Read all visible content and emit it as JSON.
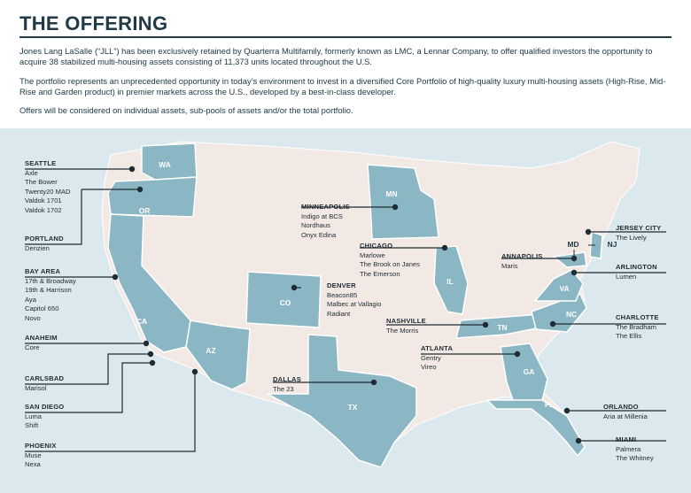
{
  "header": {
    "title": "THE OFFERING",
    "paragraphs": [
      "Jones Lang LaSalle (“JLL”) has been exclusively retained by Quarterra Multifamily, formerly known as LMC, a Lennar Company, to offer qualified investors the opportunity to acquire 38 stabilized multi-housing assets consisting of 11,373 units located throughout the U.S.",
      "The portfolio represents an unprecedented opportunity in today’s environment to invest in a diversified Core Portfolio of high-quality luxury multi-housing assets (High-Rise, Mid-Rise and Garden product) in premier markets across the U.S., developed by a best-in-class developer.",
      "Offers will be considered on individual assets, sub-pools of assets and/or the total portfolio."
    ]
  },
  "colors": {
    "highlight": "#8bb7c4",
    "land": "#f2e9e4",
    "background": "#dbe9ee",
    "text": "#203a47"
  },
  "state_labels": [
    "WA",
    "OR",
    "CA",
    "AZ",
    "CO",
    "TX",
    "MN",
    "IL",
    "TN",
    "GA",
    "FL",
    "NC",
    "VA",
    "MD",
    "NJ"
  ],
  "markets": [
    {
      "city": "SEATTLE",
      "properties": [
        "Axle",
        "The Bower",
        "Twenty20 MAD",
        "Valdok 1701",
        "Valdok 1702"
      ]
    },
    {
      "city": "PORTLAND",
      "properties": [
        "Denzien"
      ]
    },
    {
      "city": "BAY AREA",
      "properties": [
        "17th & Broadway",
        "19th & Harrison",
        "Aya",
        "Capitol 650",
        "Novo"
      ]
    },
    {
      "city": "ANAHEIM",
      "properties": [
        "Core"
      ]
    },
    {
      "city": "CARLSBAD",
      "properties": [
        "Marisol"
      ]
    },
    {
      "city": "SAN DIEGO",
      "properties": [
        "Luma",
        "Shift"
      ]
    },
    {
      "city": "PHOENIX",
      "properties": [
        "Muse",
        "Nexa"
      ]
    },
    {
      "city": "MINNEAPOLIS",
      "properties": [
        "Indigo at BCS",
        "Nordhaus",
        "Onyx Edina"
      ]
    },
    {
      "city": "DENVER",
      "properties": [
        "Beacon85",
        "Malbec at Vallagio",
        "Radiant"
      ]
    },
    {
      "city": "CHICAGO",
      "properties": [
        "Marlowe",
        "The Brook on Janes",
        "The Emerson"
      ]
    },
    {
      "city": "DALLAS",
      "properties": [
        "The 23"
      ]
    },
    {
      "city": "NASHVILLE",
      "properties": [
        "The Morris"
      ]
    },
    {
      "city": "ATLANTA",
      "properties": [
        "Gentry",
        "Vireo"
      ]
    },
    {
      "city": "ANNAPOLIS",
      "properties": [
        "Maris"
      ]
    },
    {
      "city": "JERSEY CITY",
      "properties": [
        "The Lively"
      ]
    },
    {
      "city": "ARLINGTON",
      "properties": [
        "Lumen"
      ]
    },
    {
      "city": "CHARLOTTE",
      "properties": [
        "The Bradham",
        "The Ellis"
      ]
    },
    {
      "city": "ORLANDO",
      "properties": [
        "Aria at Millenia"
      ]
    },
    {
      "city": "MIAMI",
      "properties": [
        "Palmera",
        "The Whitney"
      ]
    }
  ]
}
